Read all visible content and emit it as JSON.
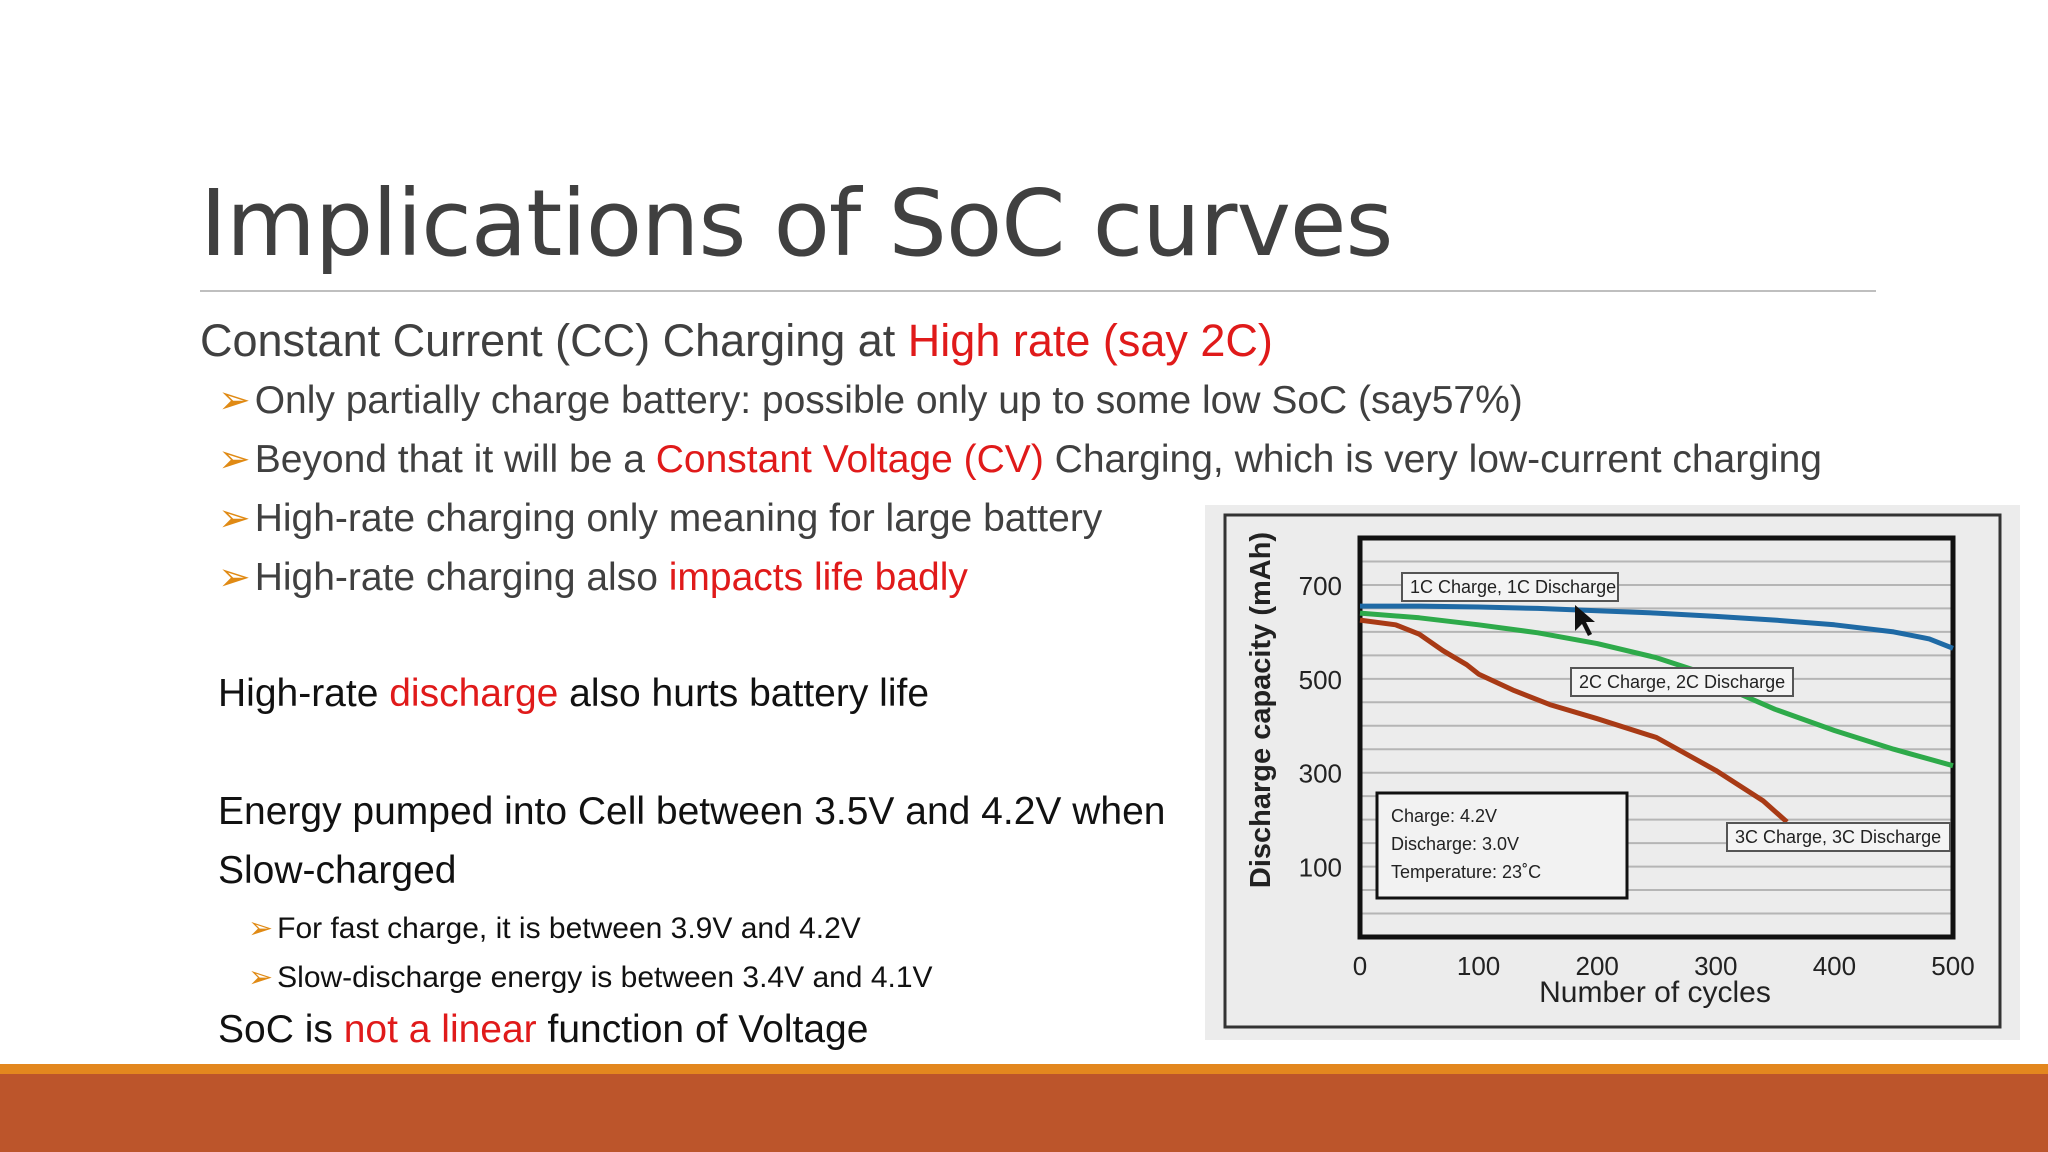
{
  "slide": {
    "title": "Implications of SoC curves",
    "subhead": {
      "prefix": "Constant Current (CC) Charging at ",
      "highlight": "High rate (say 2C)"
    },
    "bullets": [
      {
        "text": "Only partially charge battery: possible only up to some low SoC (say57%)"
      },
      {
        "before": "Beyond that it will be a ",
        "highlight": "Constant Voltage (CV)",
        "after": " Charging, which is very low-current charging"
      },
      {
        "text": "High-rate charging only meaning for large battery"
      },
      {
        "before": "High-rate charging also ",
        "highlight": "impacts life badly"
      }
    ],
    "discharge_line": {
      "before": "High-rate ",
      "highlight": "discharge",
      "after": " also hurts battery life"
    },
    "energy_line1": "Energy pumped into Cell between 3.5V and 4.2V when",
    "energy_line2": "Slow-charged",
    "sub_bullets": [
      "For fast charge, it is between 3.9V and 4.2V",
      "Slow-discharge energy is between 3.4V and 4.1V"
    ],
    "soc_line": {
      "before": "SoC is ",
      "highlight": "not a linear",
      "after": " function of Voltage"
    },
    "arrow_glyph": "➢"
  },
  "colors": {
    "accent_red": "#e01a1a",
    "bullet_arrow": "#e08a14",
    "footer_top": "#e3871e",
    "footer_bottom": "#bc552b"
  },
  "chart_data": {
    "type": "line",
    "xlabel": "Number of cycles",
    "ylabel": "Discharge capacity (mAh)",
    "xlim": [
      0,
      500
    ],
    "ylim": [
      -50,
      800
    ],
    "xticks": [
      0,
      100,
      200,
      300,
      400,
      500
    ],
    "yticks": [
      100,
      300,
      500,
      700
    ],
    "grid": true,
    "series": [
      {
        "name": "1C Charge, 1C Discharge",
        "color": "#1f6aa5",
        "x": [
          0,
          50,
          100,
          150,
          200,
          250,
          300,
          350,
          400,
          450,
          480,
          500
        ],
        "y": [
          655,
          655,
          653,
          650,
          645,
          640,
          633,
          625,
          615,
          600,
          585,
          565
        ]
      },
      {
        "name": "2C Charge, 2C Discharge",
        "color": "#2eaa4a",
        "x": [
          0,
          50,
          100,
          150,
          200,
          250,
          280,
          300,
          350,
          400,
          450,
          500
        ],
        "y": [
          640,
          630,
          615,
          598,
          575,
          545,
          520,
          490,
          435,
          390,
          350,
          315
        ]
      },
      {
        "name": "3C Charge, 3C Discharge",
        "color": "#a83a15",
        "x": [
          0,
          30,
          50,
          70,
          90,
          100,
          130,
          160,
          200,
          250,
          300,
          340,
          360
        ],
        "y": [
          625,
          615,
          595,
          560,
          530,
          510,
          475,
          445,
          415,
          375,
          305,
          240,
          195
        ]
      }
    ],
    "conditions": [
      "Charge: 4.2V",
      "Discharge: 3.0V",
      "Temperature: 23˚C"
    ]
  }
}
